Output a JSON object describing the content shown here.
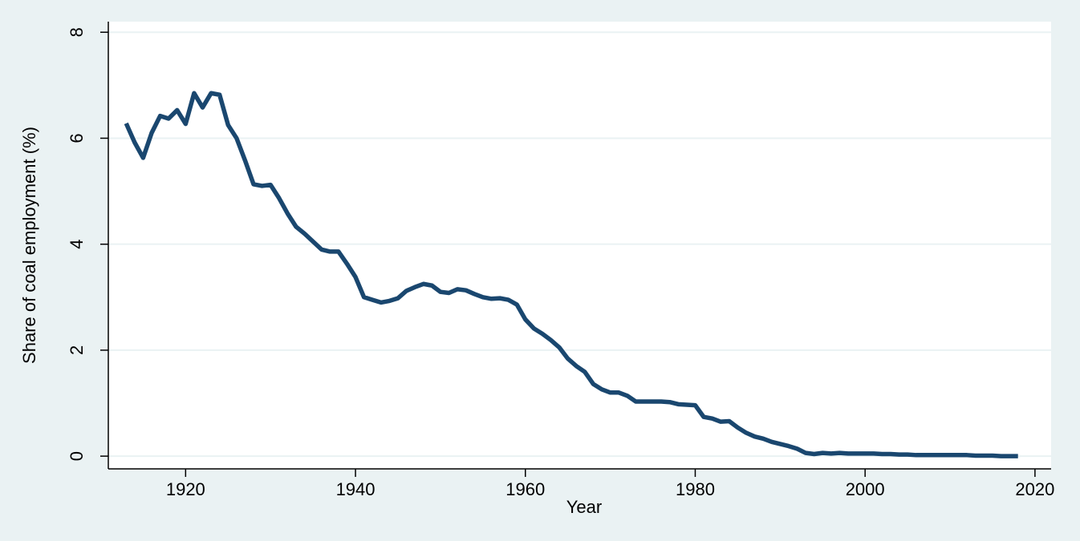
{
  "chart_data": {
    "type": "line",
    "xlabel": "Year",
    "ylabel": "Share of coal employment (%)",
    "x": [
      1913,
      1914,
      1915,
      1916,
      1917,
      1918,
      1919,
      1920,
      1921,
      1922,
      1923,
      1924,
      1925,
      1926,
      1927,
      1928,
      1929,
      1930,
      1931,
      1932,
      1933,
      1934,
      1935,
      1936,
      1937,
      1938,
      1939,
      1940,
      1941,
      1942,
      1943,
      1944,
      1945,
      1946,
      1947,
      1948,
      1949,
      1950,
      1951,
      1952,
      1953,
      1954,
      1955,
      1956,
      1957,
      1958,
      1959,
      1960,
      1961,
      1962,
      1963,
      1964,
      1965,
      1966,
      1967,
      1968,
      1969,
      1970,
      1971,
      1972,
      1973,
      1974,
      1975,
      1976,
      1977,
      1978,
      1979,
      1980,
      1981,
      1982,
      1983,
      1984,
      1985,
      1986,
      1987,
      1988,
      1989,
      1990,
      1991,
      1992,
      1993,
      1994,
      1995,
      1996,
      1997,
      1998,
      1999,
      2000,
      2001,
      2002,
      2003,
      2004,
      2005,
      2006,
      2007,
      2008,
      2009,
      2010,
      2011,
      2012,
      2013,
      2014,
      2015,
      2016,
      2017,
      2018
    ],
    "series": [
      {
        "name": "Share of coal employment",
        "color": "#1a476f",
        "values": [
          6.28,
          5.92,
          5.63,
          6.1,
          6.42,
          6.37,
          6.53,
          6.27,
          6.85,
          6.58,
          6.85,
          6.82,
          6.25,
          6.0,
          5.58,
          5.13,
          5.1,
          5.12,
          4.87,
          4.58,
          4.33,
          4.2,
          4.05,
          3.9,
          3.86,
          3.86,
          3.63,
          3.38,
          3.0,
          2.95,
          2.9,
          2.93,
          2.98,
          3.12,
          3.19,
          3.25,
          3.22,
          3.1,
          3.08,
          3.15,
          3.13,
          3.06,
          3.0,
          2.97,
          2.98,
          2.95,
          2.86,
          2.58,
          2.41,
          2.31,
          2.19,
          2.05,
          1.84,
          1.7,
          1.59,
          1.36,
          1.26,
          1.2,
          1.2,
          1.14,
          1.03,
          1.03,
          1.03,
          1.03,
          1.02,
          0.98,
          0.97,
          0.96,
          0.74,
          0.71,
          0.65,
          0.66,
          0.54,
          0.44,
          0.37,
          0.33,
          0.27,
          0.23,
          0.19,
          0.14,
          0.06,
          0.04,
          0.06,
          0.05,
          0.06,
          0.05,
          0.05,
          0.05,
          0.05,
          0.04,
          0.04,
          0.03,
          0.03,
          0.02,
          0.02,
          0.02,
          0.02,
          0.02,
          0.02,
          0.02,
          0.01,
          0.01,
          0.01,
          0.0,
          0.0,
          0.0
        ]
      }
    ],
    "xlim": [
      1910.9,
      2021.9
    ],
    "xticks": [
      1920,
      1940,
      1960,
      1980,
      2000,
      2020
    ],
    "ylim": [
      -0.24,
      8.2
    ],
    "yticks": [
      0,
      2,
      4,
      6,
      8
    ],
    "grid": true
  }
}
